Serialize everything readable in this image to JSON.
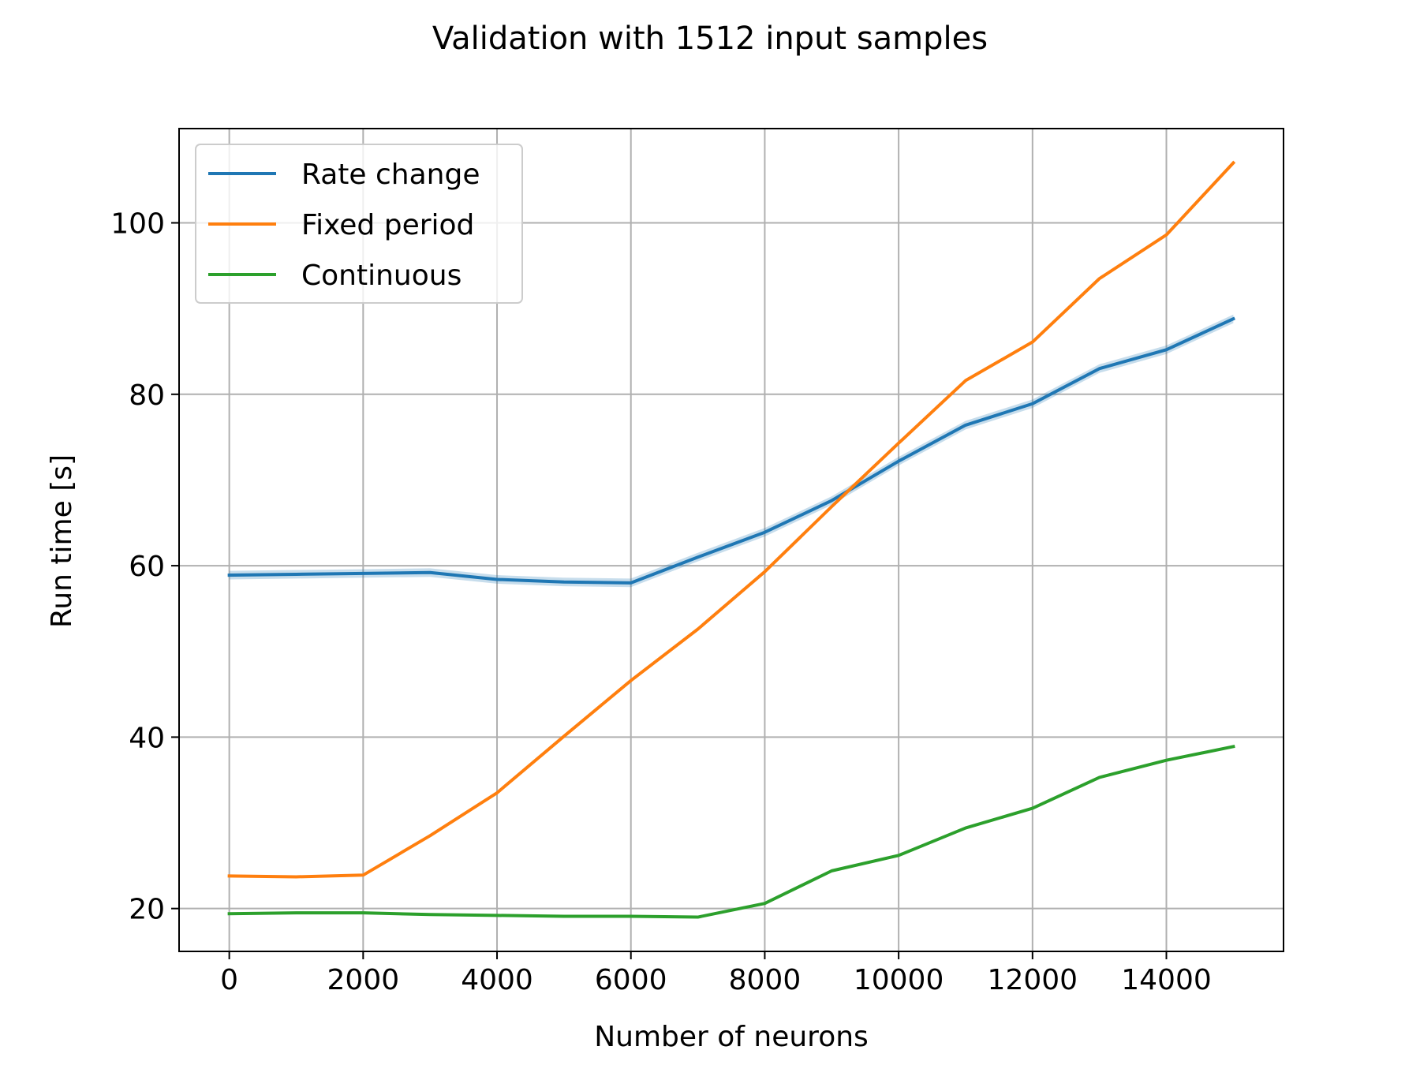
{
  "chart_data": {
    "type": "line",
    "title": "Validation with 1512 input samples",
    "xlabel": "Number of neurons",
    "ylabel": "Run time [s]",
    "xlim": [
      -750,
      15750
    ],
    "ylim": [
      15,
      111
    ],
    "xticks": [
      0,
      2000,
      4000,
      6000,
      8000,
      10000,
      12000,
      14000
    ],
    "yticks": [
      20,
      40,
      60,
      80,
      100
    ],
    "grid": true,
    "legend_position": "top-left",
    "x": [
      0,
      1000,
      2000,
      3000,
      4000,
      5000,
      6000,
      7000,
      8000,
      9000,
      10000,
      11000,
      12000,
      13000,
      14000,
      15000
    ],
    "series": [
      {
        "name": "Rate change",
        "color": "#1f77b4",
        "values": [
          58.9,
          59.0,
          59.1,
          59.2,
          58.4,
          58.1,
          58.0,
          61.0,
          63.9,
          67.6,
          72.2,
          76.4,
          78.9,
          83.0,
          85.2,
          88.8
        ],
        "band": 0.5
      },
      {
        "name": "Fixed period",
        "color": "#ff7f0e",
        "values": [
          23.8,
          23.7,
          23.9,
          28.5,
          33.5,
          40.1,
          46.6,
          52.6,
          59.3,
          66.9,
          74.3,
          81.6,
          86.1,
          93.5,
          98.6,
          107.0
        ]
      },
      {
        "name": "Continuous",
        "color": "#2ca02c",
        "values": [
          19.4,
          19.5,
          19.5,
          19.3,
          19.2,
          19.1,
          19.1,
          19.0,
          20.6,
          24.4,
          26.2,
          29.4,
          31.7,
          35.3,
          37.3,
          38.9
        ]
      }
    ]
  }
}
